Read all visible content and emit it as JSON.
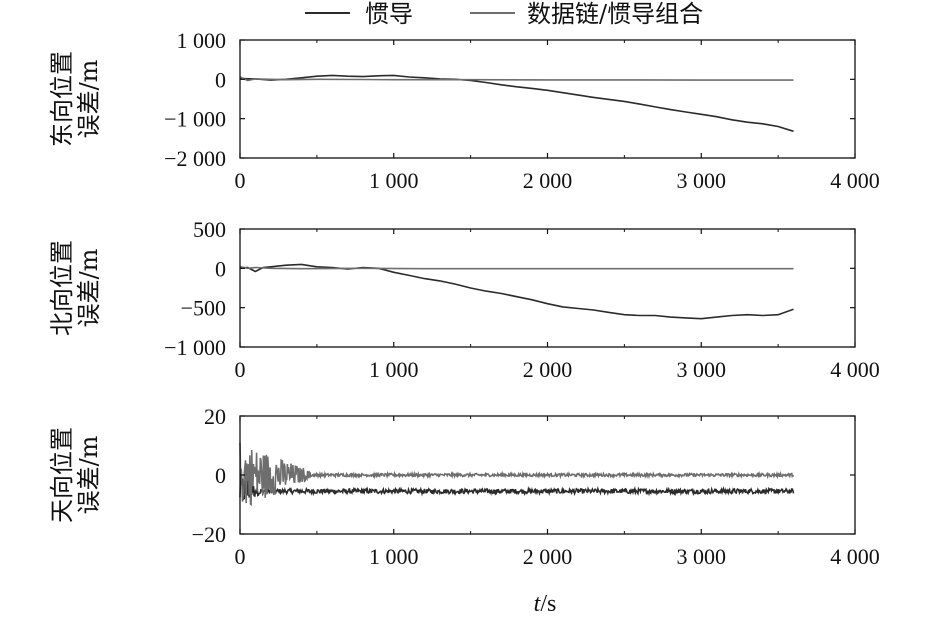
{
  "legend": {
    "items": [
      {
        "label": "惯导",
        "color": "#2b2b2b"
      },
      {
        "label": "数据链/惯导组合",
        "color": "#6e6e6e"
      }
    ],
    "placement": "top-center"
  },
  "xlabel": {
    "italic": "t",
    "rest": "/s"
  },
  "chart_data": [
    {
      "type": "line",
      "ylabel_lines": [
        "东向位置",
        "误差/m"
      ],
      "xlim": [
        0,
        4000
      ],
      "ylim": [
        -2000,
        1000
      ],
      "xticks": [
        0,
        1000,
        2000,
        3000,
        4000
      ],
      "xtick_labels": [
        "0",
        "1 000",
        "2 000",
        "3 000",
        "4 000"
      ],
      "yticks": [
        1000,
        0,
        -1000,
        -2000
      ],
      "ytick_labels": [
        "1 000",
        "0",
        "−1 000",
        "−2 000"
      ],
      "grid": false,
      "series": [
        {
          "name": "惯导",
          "color": "#2b2b2b",
          "x": [
            0,
            100,
            200,
            300,
            400,
            500,
            600,
            700,
            800,
            900,
            1000,
            1100,
            1200,
            1300,
            1400,
            1500,
            1600,
            1700,
            1800,
            1900,
            2000,
            2100,
            2200,
            2300,
            2400,
            2500,
            2600,
            2700,
            2800,
            2900,
            3000,
            3100,
            3200,
            3300,
            3400,
            3500,
            3600
          ],
          "y": [
            20,
            10,
            -20,
            0,
            40,
            80,
            100,
            80,
            70,
            90,
            100,
            60,
            40,
            10,
            0,
            -30,
            -80,
            -140,
            -190,
            -230,
            -280,
            -340,
            -400,
            -460,
            -510,
            -560,
            -630,
            -700,
            -770,
            -830,
            -890,
            -950,
            -1030,
            -1090,
            -1130,
            -1200,
            -1320
          ]
        },
        {
          "name": "数据链/惯导组合",
          "color": "#6e6e6e",
          "x": [
            0,
            50,
            100,
            200,
            300,
            500,
            800,
            1000,
            1500,
            2000,
            2500,
            3000,
            3600
          ],
          "y": [
            60,
            -30,
            10,
            0,
            -10,
            0,
            -5,
            -10,
            -10,
            -15,
            -15,
            -20,
            -20
          ]
        }
      ]
    },
    {
      "type": "line",
      "ylabel_lines": [
        "北向位置",
        "误差/m"
      ],
      "xlim": [
        0,
        4000
      ],
      "ylim": [
        -1000,
        500
      ],
      "xticks": [
        0,
        1000,
        2000,
        3000,
        4000
      ],
      "xtick_labels": [
        "0",
        "1 000",
        "2 000",
        "3 000",
        "4 000"
      ],
      "yticks": [
        500,
        0,
        -500,
        -1000
      ],
      "ytick_labels": [
        "500",
        "0",
        "−500",
        "−1 000"
      ],
      "grid": false,
      "series": [
        {
          "name": "惯导",
          "color": "#2b2b2b",
          "x": [
            0,
            50,
            100,
            150,
            200,
            300,
            400,
            500,
            600,
            700,
            800,
            900,
            1000,
            1100,
            1200,
            1300,
            1400,
            1500,
            1600,
            1700,
            1800,
            1900,
            2000,
            2100,
            2200,
            2300,
            2400,
            2500,
            2600,
            2700,
            2800,
            2900,
            3000,
            3100,
            3200,
            3300,
            3400,
            3500,
            3600
          ],
          "y": [
            0,
            10,
            -40,
            10,
            20,
            40,
            50,
            20,
            10,
            -10,
            10,
            0,
            -50,
            -90,
            -130,
            -160,
            -200,
            -250,
            -290,
            -320,
            -360,
            -400,
            -450,
            -490,
            -510,
            -530,
            -560,
            -590,
            -600,
            -600,
            -620,
            -630,
            -640,
            -620,
            -600,
            -590,
            -600,
            -590,
            -520
          ]
        },
        {
          "name": "数据链/惯导组合",
          "color": "#6e6e6e",
          "x": [
            0,
            50,
            100,
            200,
            400,
            800,
            1200,
            1600,
            2000,
            2500,
            3000,
            3600
          ],
          "y": [
            20,
            0,
            10,
            0,
            -5,
            0,
            -5,
            -5,
            -5,
            -5,
            -5,
            -5
          ]
        }
      ]
    },
    {
      "type": "line",
      "ylabel_lines": [
        "天向位置",
        "误差/m"
      ],
      "xlim": [
        0,
        4000
      ],
      "ylim": [
        -20,
        20
      ],
      "xticks": [
        0,
        1000,
        2000,
        3000,
        4000
      ],
      "xtick_labels": [
        "0",
        "1 000",
        "2 000",
        "3 000",
        "4 000"
      ],
      "yticks": [
        20,
        0,
        -20
      ],
      "ytick_labels": [
        "20",
        "0",
        "−20"
      ],
      "grid": false,
      "series": [
        {
          "name": "惯导",
          "color": "#2b2b2b",
          "mean": -5.5,
          "noise": 0.8,
          "settle_time": 150,
          "settle_amp": 6
        },
        {
          "name": "数据链/惯导组合",
          "color": "#6e6e6e",
          "mean": 0,
          "noise": 0.5,
          "settle_time": 500,
          "settle_amp": 12
        }
      ]
    }
  ]
}
